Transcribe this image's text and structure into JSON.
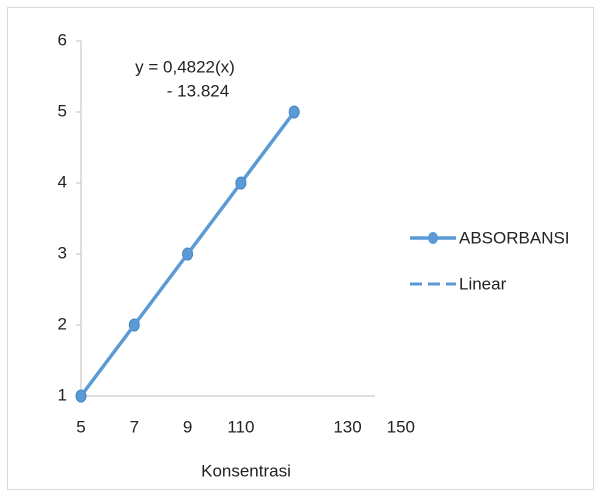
{
  "chart_data": {
    "type": "line",
    "x_label": "Konsentrasi",
    "annotation": [
      "y = 0,4822(x)",
      "- 13.824"
    ],
    "categories": [
      "5",
      "7",
      "9",
      "110",
      null,
      "130",
      "150"
    ],
    "series": [
      {
        "name": "ABSORBANSI",
        "color": "#5b9bd5",
        "values": [
          1,
          2,
          3,
          4,
          5,
          null,
          null
        ],
        "marker": true
      },
      {
        "name": "Linear",
        "color": "#5b9bd5",
        "values": [
          1,
          2,
          3,
          4,
          5,
          null,
          null
        ],
        "dashed": true
      }
    ],
    "ylim": [
      1,
      6
    ],
    "yticks": [
      1,
      2,
      3,
      4,
      5,
      6
    ]
  }
}
